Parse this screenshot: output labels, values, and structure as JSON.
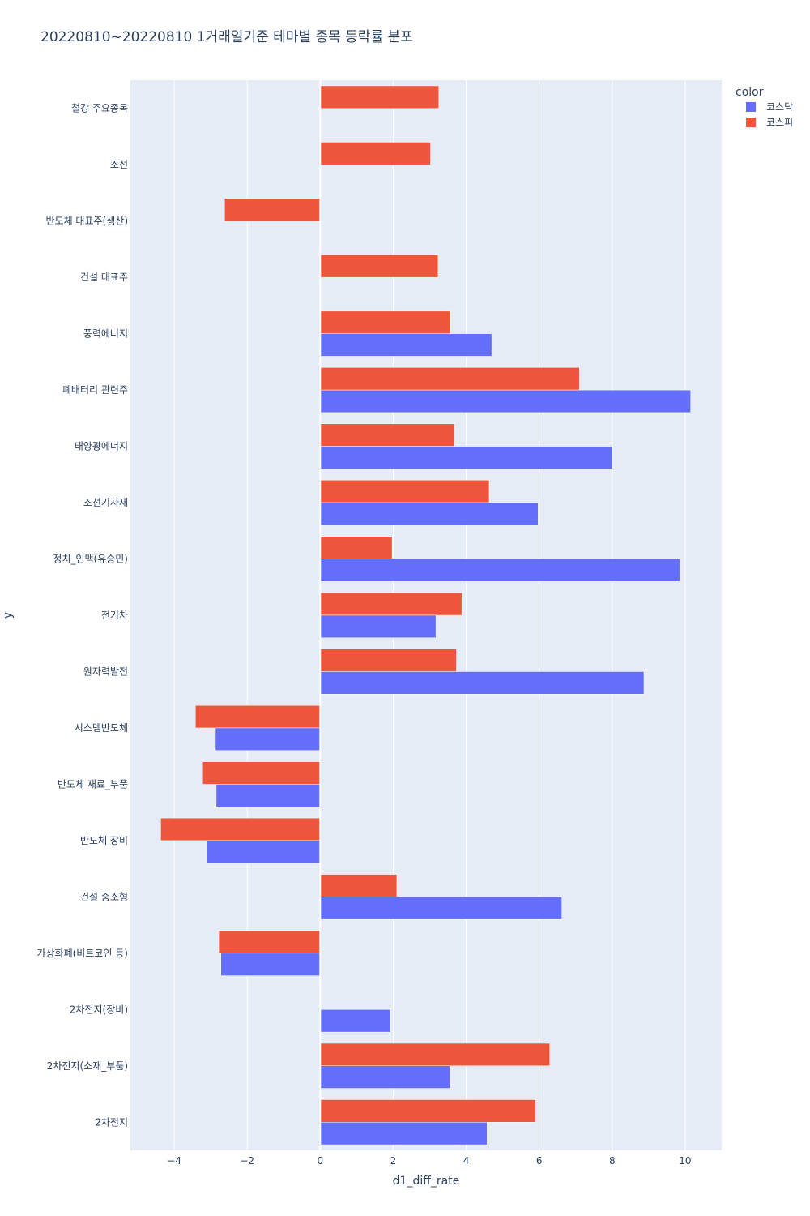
{
  "chart_data": {
    "type": "bar",
    "orientation": "horizontal",
    "title": "20220810~20220810 1거래일기준 테마별 종목 등락률 분포",
    "xlabel": "d1_diff_rate",
    "ylabel": "y",
    "xlim": [
      -5.2,
      11.0
    ],
    "xticks": [
      -4,
      -2,
      0,
      2,
      4,
      6,
      8,
      10
    ],
    "xtick_labels": [
      "−4",
      "−2",
      "0",
      "2",
      "4",
      "6",
      "8",
      "10"
    ],
    "grid": true,
    "legend": {
      "title": "color",
      "position": "top-right"
    },
    "categories": [
      "철강 주요종목",
      "조선",
      "반도체 대표주(생산)",
      "건설 대표주",
      "풍력에너지",
      "폐배터리 관련주",
      "태양광에너지",
      "조선기자재",
      "정치_인맥(유승민)",
      "전기차",
      "원자력발전",
      "시스템반도체",
      "반도체 재료_부품",
      "반도체 장비",
      "건설 중소형",
      "가상화폐(비트코인 등)",
      "2차전지(장비)",
      "2차전지(소재_부품)",
      "2차전지"
    ],
    "series": [
      {
        "name": "코스닥",
        "color": "#636efa",
        "values": [
          null,
          null,
          null,
          null,
          4.7,
          10.15,
          8.0,
          5.97,
          9.85,
          3.17,
          8.87,
          -2.87,
          -2.85,
          -3.1,
          6.62,
          -2.72,
          1.93,
          3.55,
          4.57
        ]
      },
      {
        "name": "코스피",
        "color": "#ef553b",
        "values": [
          3.25,
          3.02,
          -2.62,
          3.23,
          3.57,
          7.1,
          3.67,
          4.63,
          1.97,
          3.88,
          3.73,
          -3.42,
          -3.22,
          -4.37,
          2.1,
          -2.78,
          null,
          6.29,
          5.9
        ]
      }
    ]
  }
}
